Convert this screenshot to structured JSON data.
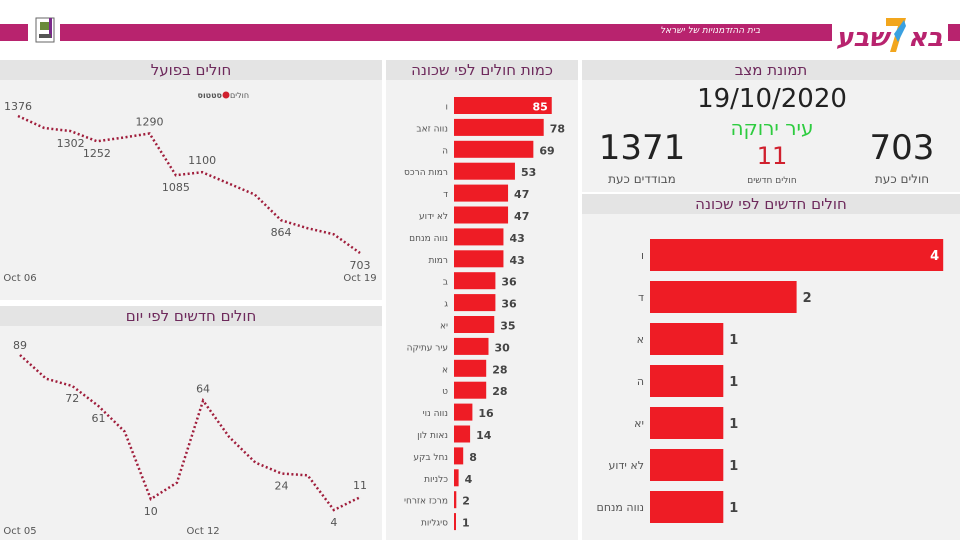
{
  "header": {
    "tagline": "בית ההזדמנויות של ישראל",
    "logo_text": "באר שבע",
    "brand_color": "#b8236e"
  },
  "colors": {
    "bar": "#ee1c25",
    "line": "#a01e3c",
    "title": "#6e2a5c",
    "green": "#2ecc40",
    "red": "#d0202e"
  },
  "snapshot": {
    "title": "תמונת מצב",
    "date": "19/10/2020",
    "city_status": "עיר ירוקה",
    "new_cases": "11",
    "new_cases_label": "חולים חדשים",
    "isolated": "1371",
    "isolated_label": "מבודדים כעת",
    "active": "703",
    "active_label": "חולים כעת"
  },
  "chart_data": [
    {
      "id": "active",
      "type": "line",
      "title": "חולים בפועל",
      "legend_title": "סטטוס",
      "legend": [
        {
          "name": "חולים",
          "color": "#d0202e"
        }
      ],
      "x": [
        "Oct 06",
        "Oct 07",
        "Oct 08",
        "Oct 09",
        "Oct 10",
        "Oct 11",
        "Oct 12",
        "Oct 13",
        "Oct 14",
        "Oct 15",
        "Oct 16",
        "Oct 17",
        "Oct 18",
        "Oct 19"
      ],
      "xticks": [
        "Oct 06",
        "Oct 19"
      ],
      "values": [
        1376,
        1317,
        1302,
        1252,
        1270,
        1290,
        1085,
        1100,
        1045,
        990,
        864,
        825,
        795,
        703
      ],
      "labels": [
        "1376",
        null,
        "1302",
        "1252",
        null,
        "1290",
        "1085",
        "1100",
        null,
        null,
        "864",
        null,
        null,
        "703"
      ],
      "ylim": [
        703,
        1376
      ]
    },
    {
      "id": "daily",
      "type": "line",
      "title": "חולים חדשים לפי יום",
      "x": [
        "Oct 05",
        "Oct 06",
        "Oct 07",
        "Oct 08",
        "Oct 09",
        "Oct 10",
        "Oct 11",
        "Oct 12",
        "Oct 13",
        "Oct 14",
        "Oct 15",
        "Oct 16",
        "Oct 17",
        "Oct 18"
      ],
      "xticks": [
        "Oct 05",
        "Oct 12"
      ],
      "values": [
        89,
        76,
        72,
        61,
        47,
        10,
        19,
        64,
        44,
        30,
        24,
        23,
        4,
        11
      ],
      "labels": [
        "89",
        null,
        "72",
        "61",
        null,
        "10",
        null,
        "64",
        null,
        null,
        "24",
        null,
        "4",
        "11"
      ],
      "ylim": [
        4,
        89
      ]
    },
    {
      "id": "byhood",
      "type": "bar",
      "orientation": "horizontal",
      "title": "כמות חולים לפי שכונה",
      "categories": [
        "ו",
        "נווה זאב",
        "ה",
        "רמות הרכס",
        "ד",
        "לא ידוע",
        "נווה מנחם",
        "רמות",
        "ב",
        "ג",
        "יא",
        "עיר עתיקה",
        "א",
        "ט",
        "נווה נוי",
        "נאות לון",
        "נחל בקע",
        "כלניות",
        "מרכז אזרחי",
        "סיגליות"
      ],
      "values": [
        85,
        78,
        69,
        53,
        47,
        47,
        43,
        43,
        36,
        36,
        35,
        30,
        28,
        28,
        16,
        14,
        8,
        4,
        2,
        1
      ]
    },
    {
      "id": "newbyhood",
      "type": "bar",
      "orientation": "horizontal",
      "title": "חולים חדשים לפי שכונה",
      "categories": [
        "ו",
        "ד",
        "א",
        "ה",
        "יא",
        "לא ידוע",
        "נווה מנחם"
      ],
      "values": [
        4,
        2,
        1,
        1,
        1,
        1,
        1
      ]
    }
  ]
}
